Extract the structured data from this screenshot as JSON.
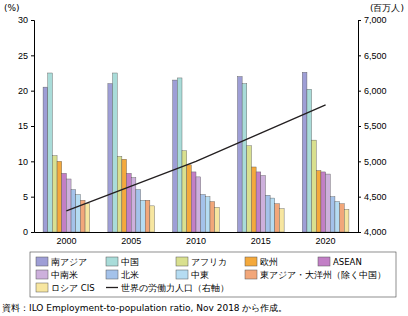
{
  "chart_data": {
    "type": "bar",
    "y_label": "(%)",
    "y2_label": "(百万人)",
    "source": "資料：ILO Employment-to-population ratio, Nov 2018 から作成。",
    "categories": [
      "2000",
      "2005",
      "2010",
      "2015",
      "2020"
    ],
    "ylim": [
      0,
      30
    ],
    "yticks": [
      0,
      5,
      10,
      15,
      20,
      25,
      30
    ],
    "y2lim": [
      4000,
      7000
    ],
    "y2ticks": [
      {
        "value": 4000,
        "label": "4,000"
      },
      {
        "value": 4500,
        "label": "4,500"
      },
      {
        "value": 5000,
        "label": "5,000"
      },
      {
        "value": 5500,
        "label": "5,500"
      },
      {
        "value": 6000,
        "label": "6,000"
      },
      {
        "value": 6500,
        "label": "6,500"
      },
      {
        "value": 7000,
        "label": "7,000"
      }
    ],
    "legend": "bottom",
    "series": [
      {
        "name": "南アジア",
        "color": "#9e9ed6",
        "values": [
          20.5,
          21.0,
          21.5,
          22.0,
          22.6
        ]
      },
      {
        "name": "中国",
        "color": "#a9dcd9",
        "values": [
          22.5,
          22.5,
          21.8,
          21.0,
          20.2
        ]
      },
      {
        "name": "アフリカ",
        "color": "#d9e08f",
        "values": [
          10.8,
          10.7,
          11.5,
          12.2,
          13.0
        ]
      },
      {
        "name": "欧州",
        "color": "#f4a93c",
        "values": [
          10.0,
          10.3,
          9.5,
          9.2,
          8.7
        ]
      },
      {
        "name": "ASEAN",
        "color": "#c27fc6",
        "values": [
          8.3,
          8.3,
          8.5,
          8.5,
          8.5
        ]
      },
      {
        "name": "中南米",
        "color": "#cdb0dc",
        "values": [
          7.5,
          7.7,
          7.8,
          8.0,
          8.2
        ]
      },
      {
        "name": "北米",
        "color": "#a4c2ea",
        "values": [
          6.0,
          6.0,
          5.3,
          5.2,
          5.0
        ]
      },
      {
        "name": "中東",
        "color": "#b5dcf2",
        "values": [
          5.3,
          4.5,
          5.0,
          4.8,
          4.3
        ]
      },
      {
        "name": "東アジア・大洋州（除く中国）",
        "color": "#f2a77a",
        "values": [
          4.5,
          4.5,
          4.3,
          4.0,
          4.0
        ]
      },
      {
        "name": "ロシア CIS",
        "color": "#f7e6a0",
        "values": [
          4.0,
          3.7,
          3.5,
          3.3,
          3.2
        ]
      },
      {
        "name": "世界の労働力人口（右軸）",
        "type": "line",
        "axis": "y2",
        "color": "#231f20",
        "values": [
          4300,
          4650,
          5000,
          5400,
          5800
        ]
      }
    ]
  }
}
